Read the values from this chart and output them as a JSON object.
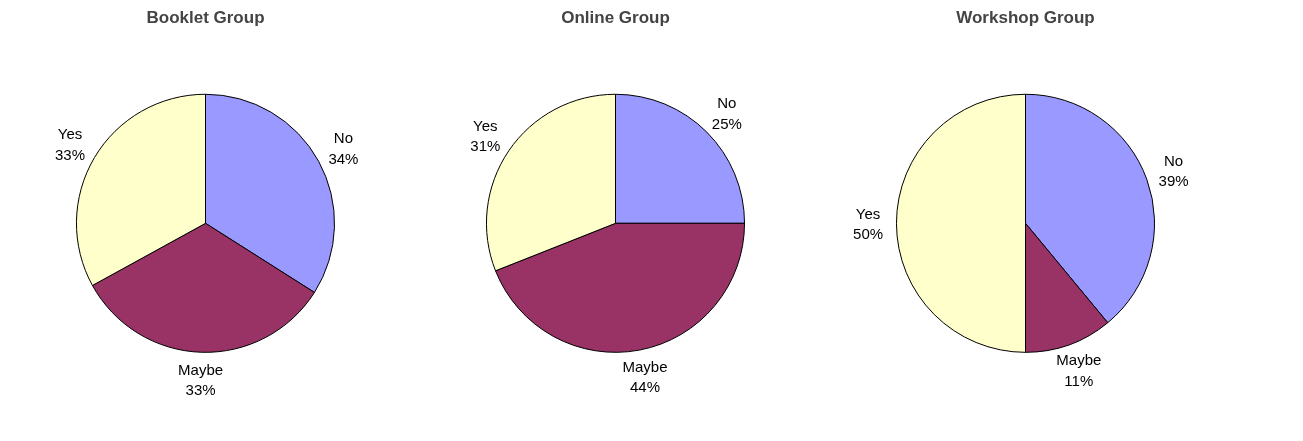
{
  "chart_data": [
    {
      "type": "pie",
      "title": "Booklet Group",
      "categories": [
        "No",
        "Maybe",
        "Yes"
      ],
      "values": [
        34,
        33,
        33
      ],
      "value_labels": [
        "34%",
        "33%",
        "33%"
      ],
      "colors": [
        "#9999ff",
        "#993366",
        "#ffffcc"
      ]
    },
    {
      "type": "pie",
      "title": "Online Group",
      "categories": [
        "No",
        "Maybe",
        "Yes"
      ],
      "values": [
        25,
        44,
        31
      ],
      "value_labels": [
        "25%",
        "44%",
        "31%"
      ],
      "colors": [
        "#9999ff",
        "#993366",
        "#ffffcc"
      ]
    },
    {
      "type": "pie",
      "title": "Workshop Group",
      "categories": [
        "No",
        "Maybe",
        "Yes"
      ],
      "values": [
        39,
        11,
        50
      ],
      "value_labels": [
        "39%",
        "11%",
        "50%"
      ],
      "colors": [
        "#9999ff",
        "#993366",
        "#ffffcc"
      ]
    }
  ]
}
